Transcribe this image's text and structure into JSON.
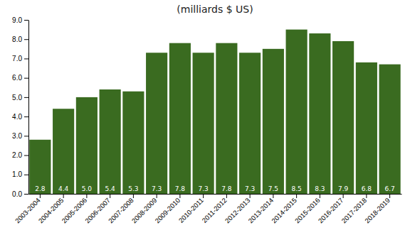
{
  "chart_data": {
    "type": "bar",
    "title": "(milliards $ US)",
    "categories": [
      "2003-2004",
      "2004-2005",
      "2005-2006",
      "2006-2007",
      "2007-2008",
      "2008-2009",
      "2009-2010",
      "2010-2011",
      "2011-2012",
      "2012-2013",
      "2013-2014",
      "2014-2015",
      "2015-2016",
      "2016-2017",
      "2017-2018",
      "2018-2019"
    ],
    "values": [
      2.8,
      4.4,
      5.0,
      5.4,
      5.3,
      7.3,
      7.8,
      7.3,
      7.8,
      7.3,
      7.5,
      8.5,
      8.3,
      7.9,
      6.8,
      6.7
    ],
    "value_labels": [
      "2.8",
      "4.4",
      "5.0",
      "5.4",
      "5.3",
      "7.3",
      "7.8",
      "7.3",
      "7.8",
      "7.3",
      "7.5",
      "8.5",
      "8.3",
      "7.9",
      "6.8",
      "6.7"
    ],
    "data_labels": true,
    "color": "#3a6b20",
    "ylim": [
      0.0,
      9.0
    ],
    "yticks": [
      {
        "value": 0.0,
        "label": "0.0"
      },
      {
        "value": 1.0,
        "label": "1.0"
      },
      {
        "value": 2.0,
        "label": "2.0"
      },
      {
        "value": 3.0,
        "label": "3.0"
      },
      {
        "value": 4.0,
        "label": "4.0"
      },
      {
        "value": 5.0,
        "label": "5.0"
      },
      {
        "value": 6.0,
        "label": "6.0"
      },
      {
        "value": 7.0,
        "label": "7.0"
      },
      {
        "value": 8.0,
        "label": "8.0"
      },
      {
        "value": 9.0,
        "label": "9.0"
      }
    ],
    "grid": false
  }
}
